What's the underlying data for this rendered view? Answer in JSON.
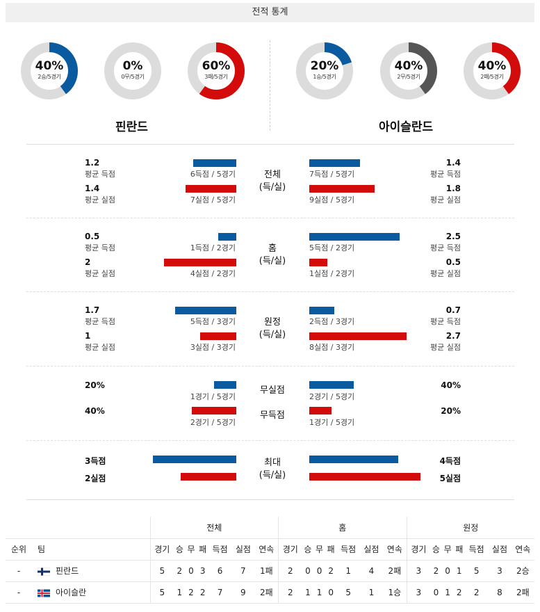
{
  "header": {
    "title": "전적 통계"
  },
  "colors": {
    "blue": "#0a5aa0",
    "red": "#d30b0b",
    "gray": "#555555",
    "track": "#dcdcdc"
  },
  "donuts": [
    {
      "pct": "40%",
      "sub": "2승/5경기",
      "value": 0.4,
      "color": "#0a5aa0"
    },
    {
      "pct": "0%",
      "sub": "0무/5경기",
      "value": 0.0,
      "color": "#555555"
    },
    {
      "pct": "60%",
      "sub": "3패/5경기",
      "value": 0.6,
      "color": "#d30b0b"
    },
    {
      "pct": "20%",
      "sub": "1승/5경기",
      "value": 0.2,
      "color": "#0a5aa0"
    },
    {
      "pct": "40%",
      "sub": "2무/5경기",
      "value": 0.4,
      "color": "#555555"
    },
    {
      "pct": "40%",
      "sub": "2패/5경기",
      "value": 0.4,
      "color": "#d30b0b"
    }
  ],
  "teams": {
    "home": "핀란드",
    "away": "아이슬란드"
  },
  "sections": {
    "total": {
      "label1": "전체",
      "label2": "(득/실)",
      "h_gf": "1.2",
      "h_gf_label": "평균 득점",
      "h_gf_bar": "6득점 / 5경기",
      "h_gf_value": 1.2,
      "h_ga": "1.4",
      "h_ga_label": "평균 실점",
      "h_ga_bar": "7실점 / 5경기",
      "h_ga_value": 1.4,
      "a_gf": "1.4",
      "a_gf_label": "평균 득점",
      "a_gf_bar": "7득점 / 5경기",
      "a_gf_value": 1.4,
      "a_ga": "1.8",
      "a_ga_label": "평균 실점",
      "a_ga_bar": "9실점 / 5경기",
      "a_ga_value": 1.8
    },
    "home": {
      "label1": "홈",
      "label2": "(득/실)",
      "h_gf": "0.5",
      "h_gf_label": "평균 득점",
      "h_gf_bar": "1득점 / 2경기",
      "h_gf_value": 0.5,
      "h_ga": "2",
      "h_ga_label": "평균 실점",
      "h_ga_bar": "4실점 / 2경기",
      "h_ga_value": 2,
      "a_gf": "2.5",
      "a_gf_label": "평균 득점",
      "a_gf_bar": "5득점 / 2경기",
      "a_gf_value": 2.5,
      "a_ga": "0.5",
      "a_ga_label": "평균 실점",
      "a_ga_bar": "1실점 / 2경기",
      "a_ga_value": 0.5
    },
    "away": {
      "label1": "원정",
      "label2": "(득/실)",
      "h_gf": "1.7",
      "h_gf_label": "평균 득점",
      "h_gf_bar": "5득점 / 3경기",
      "h_gf_value": 1.7,
      "h_ga": "1",
      "h_ga_label": "평균 실점",
      "h_ga_bar": "3실점 / 3경기",
      "h_ga_value": 1,
      "a_gf": "0.7",
      "a_gf_label": "평균 득점",
      "a_gf_bar": "2득점 / 3경기",
      "a_gf_value": 0.7,
      "a_ga": "2.7",
      "a_ga_label": "평균 실점",
      "a_ga_bar": "8실점 / 3경기",
      "a_ga_value": 2.7
    },
    "clean": {
      "label_clean": "무실점",
      "label_fail": "무득점",
      "h_clean": "20%",
      "h_clean_bar": "1경기 / 5경기",
      "h_clean_value": 0.2,
      "h_fail": "40%",
      "h_fail_bar": "2경기 / 5경기",
      "h_fail_value": 0.4,
      "a_clean": "40%",
      "a_clean_bar": "2경기 / 5경기",
      "a_clean_value": 0.4,
      "a_fail": "20%",
      "a_fail_bar": "1경기 / 5경기",
      "a_fail_value": 0.2
    },
    "max": {
      "label1": "최대",
      "label2": "(득/실)",
      "h_gf": "3득점",
      "h_gf_value": 3,
      "h_ga": "2실점",
      "h_ga_value": 2,
      "a_gf": "4득점",
      "a_gf_value": 4,
      "a_ga": "5실점",
      "a_ga_value": 5
    }
  },
  "table": {
    "group_total": "전체",
    "group_home": "홈",
    "group_away": "원정",
    "col_rank": "순위",
    "col_team": "팀",
    "cols": [
      "경기",
      "승",
      "무",
      "패",
      "득점",
      "실점",
      "연속"
    ],
    "rows": [
      {
        "rank": "-",
        "team": "핀란드",
        "total": [
          "5",
          "2",
          "0",
          "3",
          "6",
          "7",
          "1패"
        ],
        "home": [
          "2",
          "0",
          "0",
          "2",
          "1",
          "4",
          "2패"
        ],
        "away": [
          "3",
          "2",
          "0",
          "1",
          "5",
          "3",
          "2승"
        ]
      },
      {
        "rank": "-",
        "team": "아이슬란",
        "total": [
          "5",
          "1",
          "2",
          "2",
          "7",
          "9",
          "2패"
        ],
        "home": [
          "2",
          "1",
          "1",
          "0",
          "5",
          "1",
          "1승"
        ],
        "away": [
          "3",
          "0",
          "1",
          "2",
          "2",
          "8",
          "2패"
        ]
      }
    ]
  }
}
